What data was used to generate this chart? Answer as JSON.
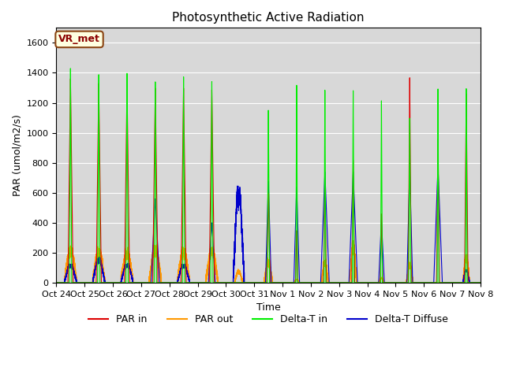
{
  "title": "Photosynthetic Active Radiation",
  "ylabel": "PAR (umol/m2/s)",
  "xlabel": "Time",
  "annotation": "VR_met",
  "ylim": [
    0,
    1700
  ],
  "yticks": [
    0,
    200,
    400,
    600,
    800,
    1000,
    1200,
    1400,
    1600
  ],
  "xtick_labels": [
    "Oct 24",
    "Oct 25",
    "Oct 26",
    "Oct 27",
    "Oct 28",
    "Oct 29",
    "Oct 30",
    "Oct 31",
    "Nov 1",
    "Nov 2",
    "Nov 3",
    "Nov 4",
    "Nov 5",
    "Nov 6",
    "Nov 7",
    "Nov 8"
  ],
  "legend_labels": [
    "PAR in",
    "PAR out",
    "Delta-T in",
    "Delta-T Diffuse"
  ],
  "legend_colors": [
    "#dd0000",
    "#ff9900",
    "#00ee00",
    "#0000cc"
  ],
  "background_color": "#e8e8e8",
  "plot_bg": "#d8d8d8",
  "days": 15
}
